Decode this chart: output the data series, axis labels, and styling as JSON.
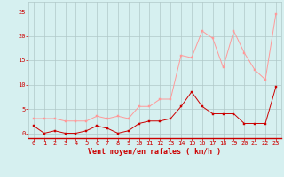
{
  "x": [
    0,
    1,
    2,
    3,
    4,
    5,
    6,
    7,
    8,
    9,
    10,
    11,
    12,
    13,
    14,
    15,
    16,
    17,
    18,
    19,
    20,
    21,
    22,
    23
  ],
  "wind_avg": [
    1.5,
    0,
    0.5,
    0,
    0,
    0.5,
    1.5,
    1,
    0,
    0.5,
    2,
    2.5,
    2.5,
    3,
    5.5,
    8.5,
    5.5,
    4,
    4,
    4,
    2,
    2,
    2,
    9.5
  ],
  "wind_gust": [
    3,
    3,
    3,
    2.5,
    2.5,
    2.5,
    3.5,
    3,
    3.5,
    3,
    5.5,
    5.5,
    7,
    7,
    16,
    15.5,
    21,
    19.5,
    13.5,
    21,
    16.5,
    13,
    11,
    24.5
  ],
  "bg_color": "#d6f0f0",
  "grid_color": "#b0c8c8",
  "line_avg_color": "#cc0000",
  "line_gust_color": "#ff9999",
  "xlabel": "Vent moyen/en rafales ( km/h )",
  "xlim": [
    -0.5,
    23.5
  ],
  "ylim": [
    -1,
    27
  ],
  "yticks": [
    0,
    5,
    10,
    15,
    20,
    25
  ],
  "xticks": [
    0,
    1,
    2,
    3,
    4,
    5,
    6,
    7,
    8,
    9,
    10,
    11,
    12,
    13,
    14,
    15,
    16,
    17,
    18,
    19,
    20,
    21,
    22,
    23
  ],
  "tick_fontsize": 5.0,
  "xlabel_fontsize": 6.0
}
